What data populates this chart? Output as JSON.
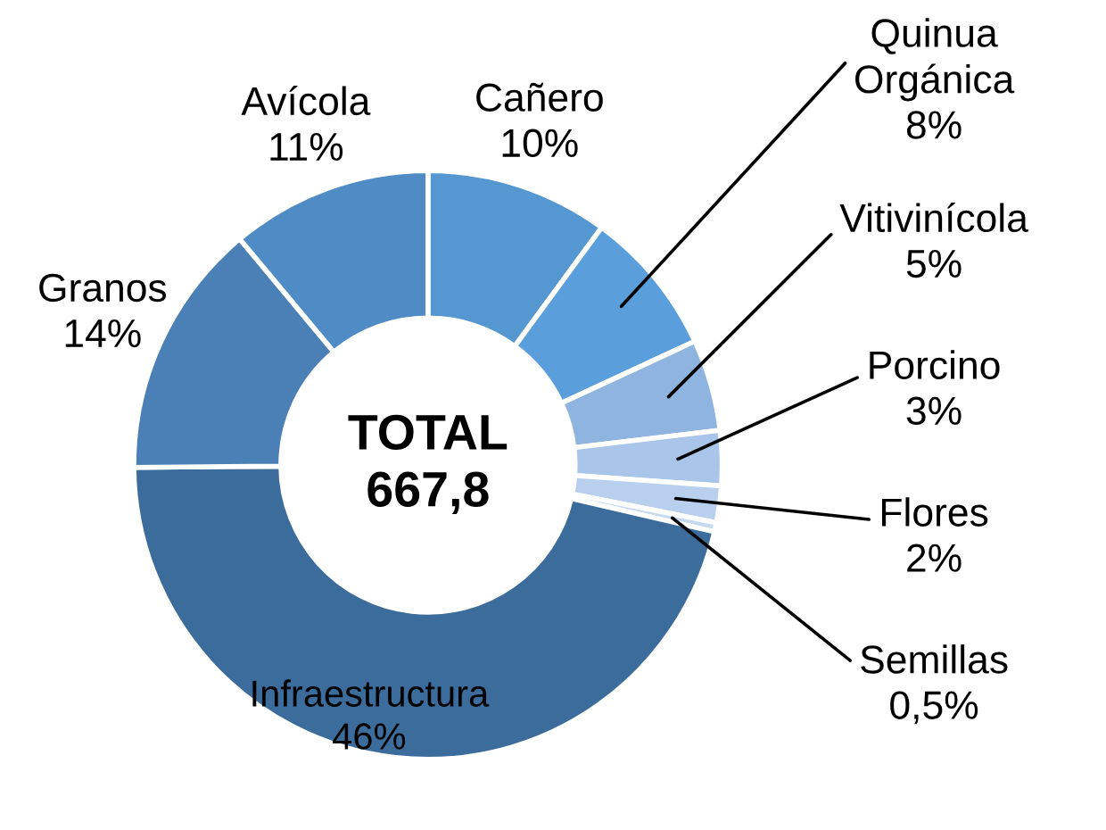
{
  "chart_data": {
    "type": "donut",
    "categories": [
      "Cañero",
      "Quinua Orgánica",
      "Vitivinícola",
      "Porcino",
      "Flores",
      "Semillas",
      "Infraestructura",
      "Granos",
      "Avícola"
    ],
    "values": [
      10,
      8,
      5,
      3,
      2,
      0.5,
      46,
      14,
      11
    ],
    "value_labels": [
      "10%",
      "8%",
      "5%",
      "3%",
      "2%",
      "0,5%",
      "46%",
      "14%",
      "11%"
    ],
    "colors": [
      "#5597d0",
      "#5a9edc",
      "#8fb4e0",
      "#a9c6ea",
      "#b8d0ee",
      "#c5d9f0",
      "#3b6c9c",
      "#4a80b6",
      "#4f8cc5"
    ],
    "annotations": [
      "TOTAL\n667,8"
    ]
  }
}
